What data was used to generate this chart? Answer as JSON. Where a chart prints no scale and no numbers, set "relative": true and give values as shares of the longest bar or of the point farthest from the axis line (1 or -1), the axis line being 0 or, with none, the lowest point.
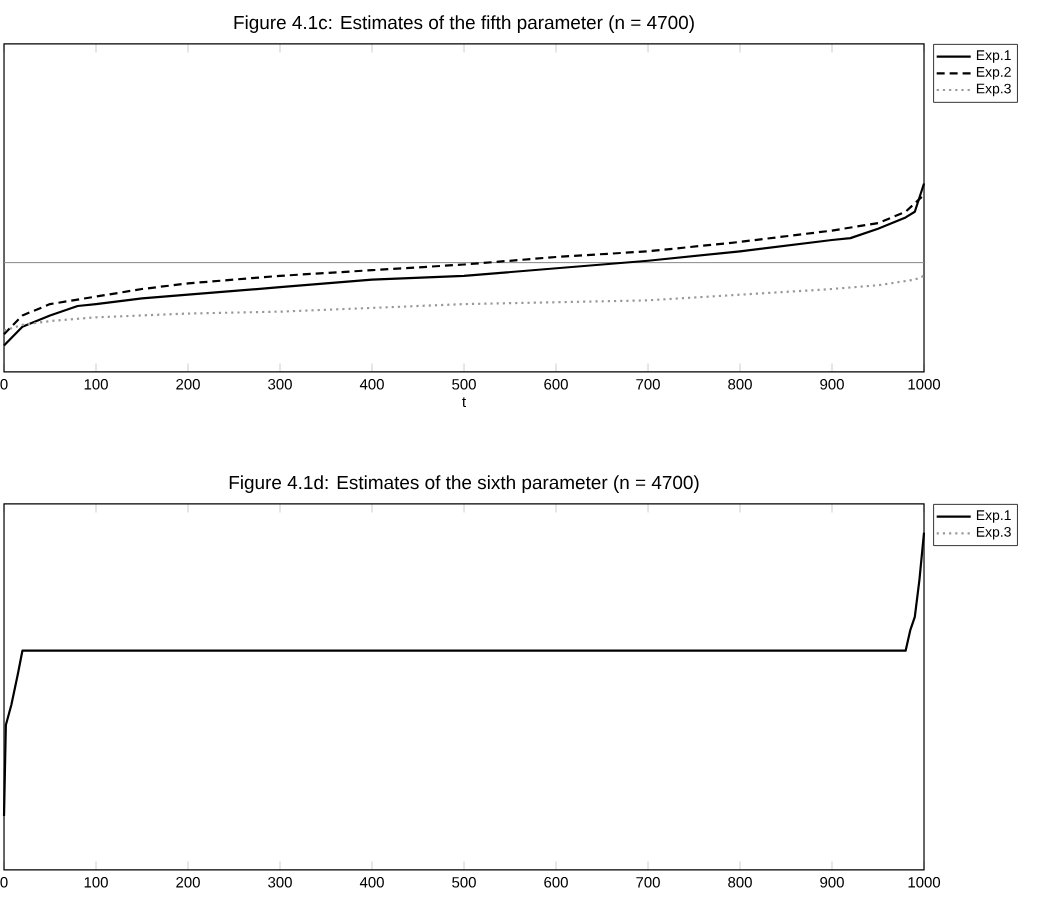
{
  "chart_data": [
    {
      "type": "line",
      "title": "Figure 4.1c: Estimates of the fifth parameter (n = 4700)",
      "xlabel": "t",
      "relative": true,
      "xlim": [
        0,
        1000
      ],
      "xticks": [
        0,
        100,
        200,
        300,
        400,
        500,
        600,
        700,
        800,
        900,
        1000
      ],
      "tick_labels": "x",
      "legend": "top right",
      "x": [
        0,
        20,
        50,
        80,
        100,
        150,
        200,
        300,
        400,
        500,
        600,
        700,
        800,
        900,
        920,
        950,
        980,
        990,
        1000
      ],
      "series": [
        {
          "name": "Exp.1",
          "color": "#000000",
          "line_style": "solid",
          "values": [
            0.14,
            0.24,
            0.3,
            0.35,
            0.36,
            0.39,
            0.41,
            0.45,
            0.49,
            0.51,
            0.55,
            0.59,
            0.64,
            0.7,
            0.71,
            0.76,
            0.82,
            0.85,
            1
          ]
        },
        {
          "name": "Exp.2",
          "color": "#000000",
          "line_style": "dashed",
          "x": [
            0,
            20,
            50,
            100,
            150,
            200,
            300,
            400,
            500,
            600,
            700,
            800,
            900,
            950,
            980,
            1000
          ],
          "values": [
            0.2,
            0.3,
            0.36,
            0.4,
            0.44,
            0.47,
            0.51,
            0.54,
            0.57,
            0.61,
            0.64,
            0.69,
            0.75,
            0.79,
            0.85,
            0.94
          ]
        },
        {
          "name": "Exp.3",
          "color": "#999999",
          "line_style": "dotted",
          "x": [
            0,
            20,
            50,
            100,
            200,
            300,
            400,
            500,
            600,
            700,
            800,
            900,
            950,
            990,
            1000
          ],
          "values": [
            0.22,
            0.25,
            0.27,
            0.29,
            0.31,
            0.32,
            0.34,
            0.36,
            0.37,
            0.38,
            0.41,
            0.44,
            0.46,
            0.49,
            0.51
          ]
        }
      ],
      "ref_lines": [
        {
          "axis": "y",
          "value": 0.58,
          "color": "#888888"
        }
      ]
    },
    {
      "type": "line",
      "title": "Figure 4.1d: Estimates of the sixth parameter (n = 4700)",
      "relative": true,
      "xlim": [
        0,
        1000
      ],
      "xticks": [
        0,
        100,
        200,
        300,
        400,
        500,
        600,
        700,
        800,
        900,
        1000
      ],
      "tick_labels": "x",
      "legend": "top right",
      "x": [
        0,
        2,
        8,
        15,
        20,
        980,
        985,
        990,
        995,
        1000
      ],
      "series": [
        {
          "name": "Exp.1",
          "color": "#000000",
          "line_style": "solid",
          "values": [
            0.16,
            0.43,
            0.49,
            0.58,
            0.65,
            0.65,
            0.71,
            0.75,
            0.86,
            1
          ]
        },
        {
          "name": "Exp.3",
          "color": "#999999",
          "line_style": "dotted",
          "values": [
            null,
            null,
            null,
            null,
            null,
            null,
            null,
            null,
            null,
            null
          ]
        }
      ]
    }
  ]
}
